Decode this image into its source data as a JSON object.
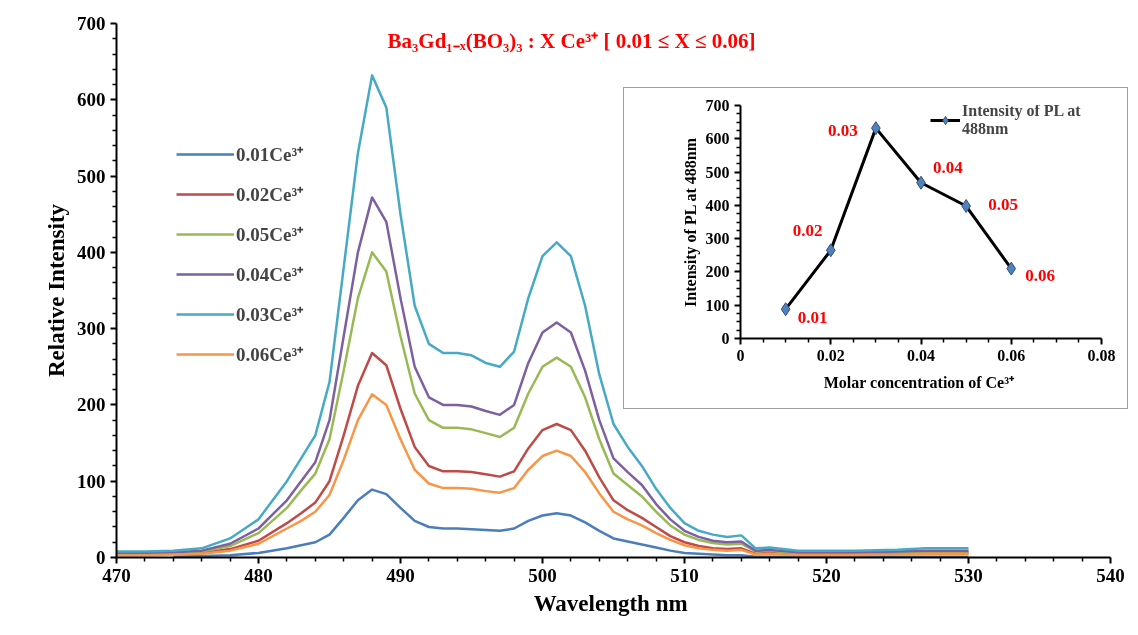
{
  "chart_data": [
    {
      "type": "line",
      "title": "Ba₃Gd₁₋ₓ(BO₃)₃ : X Ce³⁺ [ 0.01 ≤ X ≤ 0.06]",
      "xlabel": "Wavelength  nm",
      "ylabel": "Relative Intensity",
      "x": [
        470,
        472,
        474,
        476,
        478,
        480,
        482,
        483,
        484,
        485,
        486,
        487,
        488,
        489,
        490,
        491,
        492,
        493,
        494,
        495,
        496,
        497,
        498,
        499,
        500,
        501,
        502,
        503,
        504,
        505,
        506,
        507,
        508,
        509,
        510,
        511,
        512,
        513,
        514,
        515,
        516,
        518,
        520,
        522,
        525,
        527,
        530
      ],
      "series": [
        {
          "name": "0.01Ce³⁺",
          "color": "#4a7ebb",
          "values": [
            null,
            null,
            1,
            2,
            3,
            6,
            12,
            16,
            20,
            30,
            52,
            75,
            89,
            83,
            65,
            48,
            40,
            38,
            38,
            37,
            36,
            35,
            38,
            48,
            55,
            58,
            55,
            46,
            35,
            25,
            21,
            17,
            13,
            9,
            6,
            5,
            4,
            3,
            3,
            1,
            1,
            1,
            1,
            1,
            1,
            1,
            1
          ]
        },
        {
          "name": "0.02Ce³⁺",
          "color": "#be4b48",
          "values": [
            4,
            4,
            5,
            6,
            11,
            22,
            45,
            58,
            72,
            100,
            160,
            225,
            268,
            252,
            195,
            145,
            120,
            113,
            113,
            112,
            109,
            106,
            113,
            143,
            167,
            175,
            167,
            140,
            105,
            75,
            62,
            52,
            40,
            28,
            20,
            15,
            12,
            11,
            12,
            5,
            6,
            4,
            4,
            4,
            5,
            6,
            6
          ]
        },
        {
          "name": "0.05Ce³⁺",
          "color": "#98b954",
          "values": [
            null,
            null,
            6,
            8,
            15,
            32,
            65,
            88,
            110,
            155,
            245,
            340,
            400,
            375,
            290,
            215,
            180,
            170,
            170,
            168,
            163,
            158,
            170,
            215,
            250,
            262,
            250,
            210,
            155,
            110,
            95,
            80,
            60,
            42,
            30,
            23,
            19,
            17,
            18,
            8,
            9,
            6,
            6,
            6,
            7,
            8,
            8
          ]
        },
        {
          "name": "0.04Ce³⁺",
          "color": "#7d60a0",
          "values": [
            6,
            6,
            7,
            9,
            18,
            38,
            75,
            100,
            125,
            180,
            290,
            400,
            472,
            440,
            340,
            250,
            210,
            200,
            200,
            198,
            192,
            187,
            200,
            255,
            295,
            308,
            295,
            245,
            180,
            130,
            112,
            95,
            70,
            50,
            35,
            27,
            22,
            20,
            21,
            9,
            10,
            7,
            7,
            7,
            8,
            9,
            9
          ]
        },
        {
          "name": "0.03Ce³⁺",
          "color": "#46aac5",
          "values": [
            8,
            8,
            9,
            12,
            25,
            50,
            100,
            130,
            160,
            230,
            380,
            530,
            632,
            590,
            450,
            330,
            280,
            268,
            268,
            265,
            255,
            250,
            270,
            340,
            395,
            413,
            395,
            330,
            240,
            175,
            145,
            120,
            90,
            65,
            45,
            35,
            30,
            27,
            29,
            12,
            13,
            9,
            9,
            9,
            10,
            12,
            12
          ]
        },
        {
          "name": "0.06Ce³⁺",
          "color": "#f79646",
          "values": [
            3,
            3,
            4,
            5,
            9,
            18,
            38,
            48,
            60,
            82,
            128,
            180,
            214,
            200,
            155,
            115,
            97,
            91,
            91,
            90,
            87,
            85,
            91,
            115,
            133,
            140,
            133,
            112,
            84,
            60,
            50,
            42,
            32,
            23,
            16,
            12,
            10,
            9,
            10,
            4,
            5,
            3,
            3,
            3,
            4,
            5,
            5
          ]
        }
      ],
      "xlim": [
        470,
        540
      ],
      "xticks": [
        470,
        480,
        490,
        500,
        510,
        520,
        530,
        540
      ],
      "ylim": [
        0,
        700
      ],
      "yticks": [
        0,
        100,
        200,
        300,
        400,
        500,
        600,
        700
      ],
      "grid": false,
      "legend": "top left",
      "marker": "none",
      "line_style": "solid"
    },
    {
      "type": "line",
      "xlabel": "Molar concentration  of Ce³⁺",
      "ylabel": "Intensity of PL at 488nm",
      "x": [
        0.01,
        0.02,
        0.03,
        0.04,
        0.05,
        0.06
      ],
      "series": [
        {
          "name": "Intensity of PL at 488nm",
          "color": "#000000",
          "colors": [
            "#4f81bd",
            "#4f81bd",
            "#4f81bd",
            "#4f81bd",
            "#4f81bd",
            "#4f81bd"
          ],
          "values": [
            88,
            265,
            632,
            468,
            398,
            210
          ]
        }
      ],
      "annotations": [
        {
          "text": "0.01",
          "x": 0.01,
          "y": 88
        },
        {
          "text": "0.02",
          "x": 0.02,
          "y": 265
        },
        {
          "text": "0.03",
          "x": 0.03,
          "y": 632
        },
        {
          "text": "0.04",
          "x": 0.04,
          "y": 468
        },
        {
          "text": "0.05",
          "x": 0.05,
          "y": 398
        },
        {
          "text": "0.06",
          "x": 0.06,
          "y": 210
        }
      ],
      "xlim": [
        0,
        0.08
      ],
      "xticks": [
        0,
        0.02,
        0.04,
        0.06,
        0.08
      ],
      "ylim": [
        0,
        700
      ],
      "yticks": [
        0,
        100,
        200,
        300,
        400,
        500,
        600,
        700
      ],
      "grid": false,
      "legend": "top right",
      "marker": "diamond",
      "line_style": "solid"
    }
  ]
}
